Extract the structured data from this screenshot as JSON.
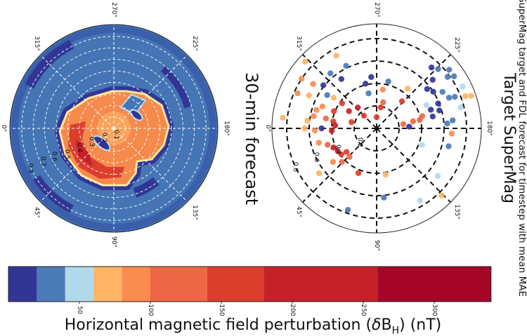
{
  "figure": {
    "suptitle": "Map of SuperMag target and FDL forecast for timestep with mean MAE",
    "left_title": "30-min forecast",
    "right_title": "Target SuperMag"
  },
  "chart_data": [
    {
      "type": "heatmap",
      "projection": "polar",
      "title": "30-min forecast",
      "theta_tick_labels": [
        "0°",
        "45°",
        "90°",
        "135°",
        "180°",
        "225°",
        "270°",
        "315°"
      ],
      "r_tick_labels": [
        "0.1",
        "0.2",
        "0.3",
        "0.4",
        "0.5",
        "0.6",
        "0.7",
        "0.8"
      ],
      "grid": true,
      "grid_style": "white dashed"
    },
    {
      "type": "scatter",
      "projection": "polar",
      "title": "Target SuperMag",
      "theta_tick_labels": [
        "0°",
        "45°",
        "90°",
        "135°",
        "180°",
        "225°",
        "270°",
        "315°"
      ],
      "r_tick_labels": [
        "0.2",
        "0.4",
        "0.6",
        "0.8"
      ],
      "grid": true,
      "grid_style": "black dashed",
      "points_theta_deg_r_value": [
        [
          228,
          0.73,
          10
        ],
        [
          224,
          0.76,
          30
        ],
        [
          219,
          0.83,
          30
        ],
        [
          216,
          0.78,
          30
        ],
        [
          214,
          0.83,
          30
        ],
        [
          206,
          0.85,
          50
        ],
        [
          221,
          0.66,
          10
        ],
        [
          218,
          0.57,
          10
        ],
        [
          213,
          0.6,
          10
        ],
        [
          209,
          0.67,
          30
        ],
        [
          203,
          0.7,
          30
        ],
        [
          202,
          0.75,
          30
        ],
        [
          200,
          0.84,
          70
        ],
        [
          199,
          0.89,
          70
        ],
        [
          194,
          0.77,
          50
        ],
        [
          205,
          0.49,
          50
        ],
        [
          199,
          0.51,
          10
        ],
        [
          202,
          0.59,
          10
        ],
        [
          196,
          0.58,
          10
        ],
        [
          192,
          0.51,
          10
        ],
        [
          186,
          0.68,
          30
        ],
        [
          184,
          0.63,
          30
        ],
        [
          195,
          0.42,
          120
        ],
        [
          191,
          0.39,
          120
        ],
        [
          191,
          0.33,
          110
        ],
        [
          189,
          0.24,
          110
        ],
        [
          183,
          0.29,
          10
        ],
        [
          227,
          0.33,
          150
        ],
        [
          232,
          0.45,
          70
        ],
        [
          160,
          0.43,
          50
        ],
        [
          166,
          0.66,
          30
        ],
        [
          176,
          0.67,
          90
        ],
        [
          142,
          0.69,
          50
        ],
        [
          121,
          0.75,
          50
        ],
        [
          134,
          0.83,
          70
        ],
        [
          96,
          0.62,
          30
        ],
        [
          70.6,
          0.77,
          30
        ],
        [
          101,
          0.42,
          70
        ],
        [
          299,
          0.74,
          70
        ],
        [
          317,
          0.87,
          70
        ],
        [
          296,
          0.62,
          30
        ],
        [
          310,
          0.64,
          30
        ],
        [
          305.5,
          0.54,
          10
        ],
        [
          326.5,
          0.8,
          90
        ],
        [
          321,
          0.61,
          10
        ],
        [
          325,
          0.69,
          80
        ],
        [
          336,
          0.77,
          80
        ],
        [
          334,
          0.67,
          70
        ],
        [
          326,
          0.53,
          30
        ],
        [
          324.5,
          0.47,
          70
        ],
        [
          324,
          0.38,
          150
        ],
        [
          276,
          0.46,
          10
        ],
        [
          284,
          0.41,
          10
        ],
        [
          256,
          0.43,
          30
        ],
        [
          283,
          0.32,
          30
        ],
        [
          261,
          0.35,
          80
        ],
        [
          256,
          0.24,
          130
        ],
        [
          259,
          0.19,
          150
        ],
        [
          270,
          0.1,
          150
        ],
        [
          312,
          0.25,
          250
        ],
        [
          328,
          0.29,
          250
        ],
        [
          315,
          0.16,
          170
        ],
        [
          346,
          0.23,
          140
        ],
        [
          338,
          0.41,
          150
        ],
        [
          353.5,
          0.84,
          70
        ],
        [
          353.7,
          0.62,
          70
        ],
        [
          343,
          0.56,
          80
        ],
        [
          338,
          0.52,
          80
        ],
        [
          349,
          0.57,
          90
        ],
        [
          349,
          0.46,
          120
        ],
        [
          351,
          0.39,
          150
        ],
        [
          356,
          0.37,
          200
        ],
        [
          3,
          0.4,
          200
        ],
        [
          0,
          0.49,
          10
        ],
        [
          2,
          0.55,
          90
        ],
        [
          0,
          0.64,
          70
        ],
        [
          14,
          0.53,
          80
        ],
        [
          18.5,
          0.46,
          130
        ],
        [
          24,
          0.42,
          250
        ],
        [
          30.4,
          0.4,
          250
        ],
        [
          36.4,
          0.39,
          150
        ],
        [
          38.2,
          0.34,
          150
        ],
        [
          46.5,
          0.35,
          130
        ],
        [
          44,
          0.43,
          100
        ],
        [
          37.6,
          0.49,
          90
        ],
        [
          38,
          0.65,
          70
        ],
        [
          67.8,
          0.43,
          150
        ]
      ]
    }
  ],
  "colorbar": {
    "label_main": "Horizontal magnetic field perturbation (",
    "label_delta": "δ",
    "label_B": "B",
    "label_sub": "H",
    "label_end": ") (nT)",
    "boundaries": [
      0,
      20,
      40,
      60,
      80,
      100,
      140,
      180,
      260,
      340
    ],
    "colors": [
      "#313695",
      "#4a7bb6",
      "#b0daeb",
      "#fdb464",
      "#f88b4d",
      "#ee6744",
      "#dc3e2e",
      "#c52129",
      "#a50526"
    ],
    "ticks": [
      50,
      100,
      150,
      200,
      250,
      300
    ],
    "tick_labels": [
      "50",
      "100",
      "150",
      "200",
      "250",
      "300"
    ]
  }
}
